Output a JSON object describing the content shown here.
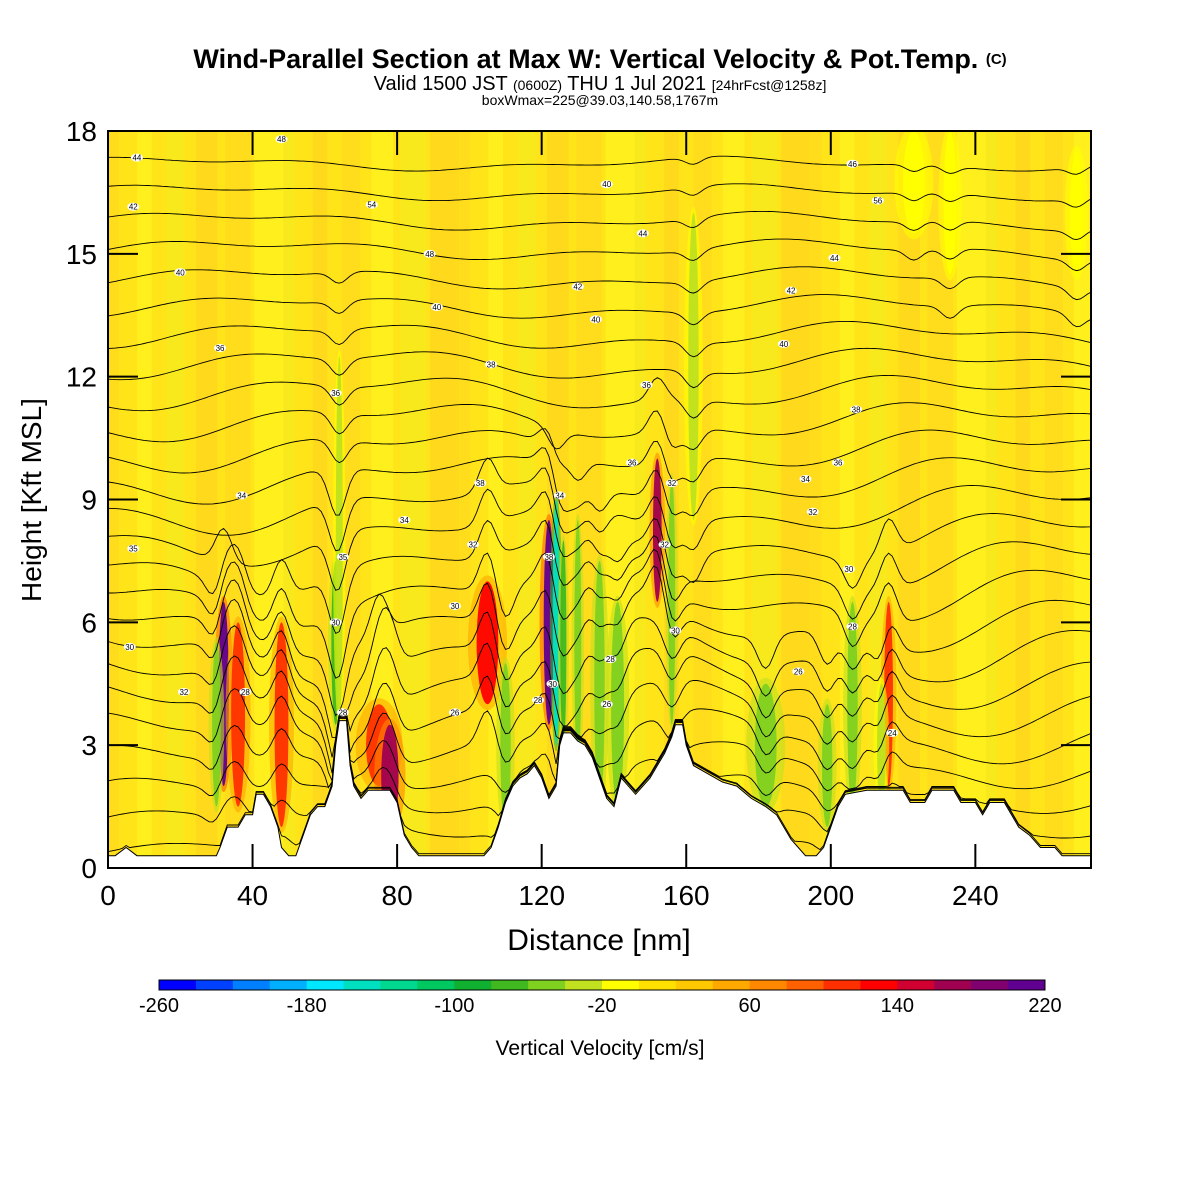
{
  "header": {
    "title": "Wind-Parallel Section at Max W: Vertical Velocity & Pot.Temp.",
    "copyright": "(C)",
    "valid_prefix": "Valid 1500 JST",
    "valid_zulu": "(0600Z)",
    "valid_date": "THU 1 Jul 2021",
    "forecast": "[24hrFcst@1258z]",
    "box_info": "boxWmax=225@39.03,140.58,1767m"
  },
  "chart_data": {
    "type": "heatmap",
    "title": "Wind-Parallel Section at Max W: Vertical Velocity & Pot.Temp.",
    "xlabel": "Distance [nm]",
    "ylabel": "Height [Kft MSL]",
    "xlim": [
      0,
      272
    ],
    "ylim": [
      0,
      18
    ],
    "x_ticks": [
      0,
      40,
      80,
      120,
      160,
      200,
      240
    ],
    "y_ticks": [
      0,
      3,
      6,
      9,
      12,
      15,
      18
    ],
    "colorbar": {
      "label": "Vertical Velocity [cm/s]",
      "tick_labels": [
        -260,
        -180,
        -100,
        -20,
        60,
        140,
        220
      ],
      "levels_start": -260,
      "levels_step": 20,
      "colors": [
        "#0000ff",
        "#0040ff",
        "#0080ff",
        "#00b0ff",
        "#00e8ff",
        "#00e0c0",
        "#00d890",
        "#00c860",
        "#10b030",
        "#40b820",
        "#80d020",
        "#c0e020",
        "#ffff00",
        "#ffe000",
        "#ffc800",
        "#ffa800",
        "#ff8800",
        "#ff6000",
        "#ff3000",
        "#ff0000",
        "#d00030",
        "#a00050",
        "#800070",
        "#600090"
      ]
    },
    "terrain": [
      [
        0,
        0.3
      ],
      [
        2,
        0.3
      ],
      [
        5,
        0.5
      ],
      [
        8,
        0.3
      ],
      [
        12,
        0.3
      ],
      [
        15,
        0.3
      ],
      [
        20,
        0.3
      ],
      [
        25,
        0.3
      ],
      [
        30,
        0.3
      ],
      [
        31,
        0.5
      ],
      [
        33,
        1
      ],
      [
        36,
        1
      ],
      [
        38,
        1.3
      ],
      [
        40,
        1.3
      ],
      [
        41,
        1.8
      ],
      [
        43,
        1.8
      ],
      [
        45,
        1.5
      ],
      [
        47,
        1
      ],
      [
        48,
        0.5
      ],
      [
        50,
        0.3
      ],
      [
        52,
        0.3
      ],
      [
        54,
        0.8
      ],
      [
        56,
        1.3
      ],
      [
        58,
        1.5
      ],
      [
        60,
        1.5
      ],
      [
        62,
        2
      ],
      [
        63,
        3
      ],
      [
        64,
        3.6
      ],
      [
        66,
        3.6
      ],
      [
        67,
        2.5
      ],
      [
        68,
        2
      ],
      [
        70,
        1.7
      ],
      [
        72,
        1.9
      ],
      [
        78,
        1.9
      ],
      [
        80,
        1.6
      ],
      [
        81,
        1.2
      ],
      [
        82,
        0.8
      ],
      [
        84,
        0.5
      ],
      [
        86,
        0.3
      ],
      [
        90,
        0.3
      ],
      [
        95,
        0.3
      ],
      [
        100,
        0.3
      ],
      [
        104,
        0.3
      ],
      [
        106,
        0.5
      ],
      [
        108,
        1
      ],
      [
        110,
        1.6
      ],
      [
        112,
        2
      ],
      [
        114,
        2.2
      ],
      [
        116,
        2.3
      ],
      [
        118,
        2.5
      ],
      [
        120,
        2.2
      ],
      [
        122,
        1.7
      ],
      [
        124,
        2
      ],
      [
        125,
        3
      ],
      [
        126,
        3.3
      ],
      [
        128,
        3.3
      ],
      [
        130,
        3.1
      ],
      [
        132,
        3
      ],
      [
        134,
        2.7
      ],
      [
        136,
        2.2
      ],
      [
        138,
        1.7
      ],
      [
        140,
        1.5
      ],
      [
        142,
        2.2
      ],
      [
        144,
        2
      ],
      [
        146,
        1.8
      ],
      [
        148,
        2
      ],
      [
        150,
        2.2
      ],
      [
        152,
        2.5
      ],
      [
        154,
        2.8
      ],
      [
        156,
        3.2
      ],
      [
        157,
        3.5
      ],
      [
        159,
        3.5
      ],
      [
        160,
        3
      ],
      [
        162,
        2.5
      ],
      [
        166,
        2.3
      ],
      [
        170,
        2.1
      ],
      [
        174,
        2
      ],
      [
        178,
        1.7
      ],
      [
        182,
        1.5
      ],
      [
        185,
        1.3
      ],
      [
        187,
        1
      ],
      [
        189,
        0.7
      ],
      [
        191,
        0.5
      ],
      [
        193,
        0.3
      ],
      [
        196,
        0.3
      ],
      [
        198,
        0.5
      ],
      [
        200,
        1
      ],
      [
        202,
        1.5
      ],
      [
        204,
        1.8
      ],
      [
        210,
        1.9
      ],
      [
        220,
        1.9
      ],
      [
        222,
        1.6
      ],
      [
        226,
        1.6
      ],
      [
        228,
        1.9
      ],
      [
        234,
        1.9
      ],
      [
        236,
        1.6
      ],
      [
        240,
        1.6
      ],
      [
        242,
        1.3
      ],
      [
        244,
        1.6
      ],
      [
        248,
        1.6
      ],
      [
        250,
        1.3
      ],
      [
        252,
        1
      ],
      [
        255,
        0.8
      ],
      [
        258,
        0.5
      ],
      [
        262,
        0.5
      ],
      [
        264,
        0.3
      ],
      [
        268,
        0.3
      ],
      [
        272,
        0.3
      ]
    ],
    "velocity_features": [
      {
        "x": 32,
        "y0": 2.0,
        "y1": 6.5,
        "w": 1.2,
        "value": 200
      },
      {
        "x": 30,
        "y0": 1.5,
        "y1": 5.5,
        "w": 1.0,
        "value": -60
      },
      {
        "x": 36,
        "y0": 1.5,
        "y1": 6.0,
        "w": 1.6,
        "value": 100
      },
      {
        "x": 48,
        "y0": 1.0,
        "y1": 6.0,
        "w": 1.6,
        "value": 100
      },
      {
        "x": 63,
        "y0": 3.5,
        "y1": 7.5,
        "w": 1.0,
        "value": -80
      },
      {
        "x": 64,
        "y0": 3.5,
        "y1": 12.5,
        "w": 0.8,
        "value": -40
      },
      {
        "x": 75,
        "y0": 2.0,
        "y1": 4.0,
        "w": 3.0,
        "value": 100
      },
      {
        "x": 78,
        "y0": 1.0,
        "y1": 3.5,
        "w": 2.0,
        "value": 160
      },
      {
        "x": 105,
        "y0": 4.0,
        "y1": 7.0,
        "w": 2.5,
        "value": 120
      },
      {
        "x": 110,
        "y0": 1.0,
        "y1": 5.0,
        "w": 1.2,
        "value": -60
      },
      {
        "x": 122,
        "y0": 3.5,
        "y1": 8.5,
        "w": 1.2,
        "value": 220
      },
      {
        "x": 124,
        "y0": 3.0,
        "y1": 9.0,
        "w": 0.8,
        "value": -160
      },
      {
        "x": 126,
        "y0": 3.0,
        "y1": 8.0,
        "w": 0.7,
        "value": -80
      },
      {
        "x": 130,
        "y0": 2.5,
        "y1": 8.5,
        "w": 0.8,
        "value": -60
      },
      {
        "x": 136,
        "y0": 1.5,
        "y1": 7.5,
        "w": 1.2,
        "value": -60
      },
      {
        "x": 141,
        "y0": 1.5,
        "y1": 6.5,
        "w": 1.5,
        "value": -60
      },
      {
        "x": 152,
        "y0": 6.5,
        "y1": 10.0,
        "w": 1.0,
        "value": 160
      },
      {
        "x": 156,
        "y0": 3.5,
        "y1": 9.5,
        "w": 0.8,
        "value": -60
      },
      {
        "x": 162,
        "y0": 8.5,
        "y1": 16.0,
        "w": 1.2,
        "value": -40
      },
      {
        "x": 182,
        "y0": 1.5,
        "y1": 4.5,
        "w": 2.5,
        "value": -60
      },
      {
        "x": 199,
        "y0": 1.0,
        "y1": 4.0,
        "w": 1.2,
        "value": -60
      },
      {
        "x": 206,
        "y0": 1.5,
        "y1": 6.5,
        "w": 1.2,
        "value": -60
      },
      {
        "x": 216,
        "y0": 2.0,
        "y1": 6.5,
        "w": 1.0,
        "value": 100
      },
      {
        "x": 214,
        "y0": 1.5,
        "y1": 4.5,
        "w": 1.0,
        "value": -40
      },
      {
        "x": 223,
        "y0": 15.5,
        "y1": 18.0,
        "w": 2.5,
        "value": -20
      },
      {
        "x": 233,
        "y0": 14.5,
        "y1": 18.0,
        "w": 1.5,
        "value": -20
      },
      {
        "x": 268,
        "y0": 14.5,
        "y1": 17.5,
        "w": 1.5,
        "value": -20
      }
    ],
    "isentropes": [
      {
        "base": 0.4,
        "amp": 0.5
      },
      {
        "base": 1.1,
        "amp": 0.7
      },
      {
        "base": 1.8,
        "amp": 0.9
      },
      {
        "base": 2.5,
        "amp": 1.1
      },
      {
        "base": 3.2,
        "amp": 1.3
      },
      {
        "base": 3.9,
        "amp": 1.4
      },
      {
        "base": 4.6,
        "amp": 1.5
      },
      {
        "base": 5.3,
        "amp": 1.6
      },
      {
        "base": 6.0,
        "amp": 1.6
      },
      {
        "base": 6.7,
        "amp": 1.6
      },
      {
        "base": 7.4,
        "amp": 1.5
      },
      {
        "base": 8.1,
        "amp": 1.4
      },
      {
        "base": 8.8,
        "amp": 1.3
      },
      {
        "base": 9.5,
        "amp": 1.2
      },
      {
        "base": 10.2,
        "amp": 1.1
      },
      {
        "base": 10.9,
        "amp": 1.0
      },
      {
        "base": 11.6,
        "amp": 0.9
      },
      {
        "base": 12.3,
        "amp": 0.8
      },
      {
        "base": 13.0,
        "amp": 0.7
      },
      {
        "base": 13.7,
        "amp": 0.6
      },
      {
        "base": 14.4,
        "amp": 0.55
      },
      {
        "base": 15.1,
        "amp": 0.5
      },
      {
        "base": 15.8,
        "amp": 0.45
      },
      {
        "base": 16.5,
        "amp": 0.4
      },
      {
        "base": 17.2,
        "amp": 0.35
      }
    ],
    "contour_labels": [
      {
        "x": 8,
        "y": 17.35,
        "text": "44"
      },
      {
        "x": 48,
        "y": 17.8,
        "text": "48"
      },
      {
        "x": 7,
        "y": 16.15,
        "text": "42"
      },
      {
        "x": 20,
        "y": 14.55,
        "text": "40"
      },
      {
        "x": 73,
        "y": 16.2,
        "text": "54"
      },
      {
        "x": 89,
        "y": 15,
        "text": "48"
      },
      {
        "x": 138,
        "y": 16.7,
        "text": "40"
      },
      {
        "x": 148,
        "y": 15.5,
        "text": "44"
      },
      {
        "x": 206,
        "y": 17.2,
        "text": "46"
      },
      {
        "x": 213,
        "y": 16.3,
        "text": "56"
      },
      {
        "x": 201,
        "y": 14.9,
        "text": "44"
      },
      {
        "x": 91,
        "y": 13.7,
        "text": "40"
      },
      {
        "x": 130,
        "y": 14.2,
        "text": "42"
      },
      {
        "x": 135,
        "y": 13.4,
        "text": "40"
      },
      {
        "x": 189,
        "y": 14.1,
        "text": "42"
      },
      {
        "x": 31,
        "y": 12.7,
        "text": "36"
      },
      {
        "x": 106,
        "y": 12.3,
        "text": "38"
      },
      {
        "x": 149,
        "y": 11.8,
        "text": "36"
      },
      {
        "x": 187,
        "y": 12.8,
        "text": "40"
      },
      {
        "x": 63,
        "y": 11.6,
        "text": "36"
      },
      {
        "x": 207,
        "y": 11.2,
        "text": "38"
      },
      {
        "x": 145,
        "y": 9.9,
        "text": "36"
      },
      {
        "x": 202,
        "y": 9.9,
        "text": "36"
      },
      {
        "x": 37,
        "y": 9.1,
        "text": "34"
      },
      {
        "x": 103,
        "y": 9.4,
        "text": "38"
      },
      {
        "x": 125,
        "y": 9.1,
        "text": "34"
      },
      {
        "x": 156,
        "y": 9.4,
        "text": "32"
      },
      {
        "x": 193,
        "y": 9.5,
        "text": "34"
      },
      {
        "x": 195,
        "y": 8.7,
        "text": "32"
      },
      {
        "x": 82,
        "y": 8.5,
        "text": "34"
      },
      {
        "x": 101,
        "y": 7.9,
        "text": "32"
      },
      {
        "x": 7,
        "y": 7.8,
        "text": "35"
      },
      {
        "x": 122,
        "y": 7.6,
        "text": "38"
      },
      {
        "x": 154,
        "y": 7.9,
        "text": "32"
      },
      {
        "x": 65,
        "y": 7.6,
        "text": "35"
      },
      {
        "x": 205,
        "y": 7.3,
        "text": "30"
      },
      {
        "x": 96,
        "y": 6.4,
        "text": "30"
      },
      {
        "x": 63,
        "y": 6.0,
        "text": "30"
      },
      {
        "x": 157,
        "y": 5.8,
        "text": "30"
      },
      {
        "x": 206,
        "y": 5.9,
        "text": "28"
      },
      {
        "x": 6,
        "y": 5.4,
        "text": "30"
      },
      {
        "x": 139,
        "y": 5.1,
        "text": "28"
      },
      {
        "x": 191,
        "y": 4.8,
        "text": "26"
      },
      {
        "x": 21,
        "y": 4.3,
        "text": "32"
      },
      {
        "x": 38,
        "y": 4.3,
        "text": "28"
      },
      {
        "x": 123,
        "y": 4.5,
        "text": "30"
      },
      {
        "x": 119,
        "y": 4.1,
        "text": "28"
      },
      {
        "x": 138,
        "y": 4.0,
        "text": "26"
      },
      {
        "x": 65,
        "y": 3.8,
        "text": "28"
      },
      {
        "x": 96,
        "y": 3.8,
        "text": "26"
      },
      {
        "x": 217,
        "y": 3.3,
        "text": "24"
      }
    ]
  }
}
